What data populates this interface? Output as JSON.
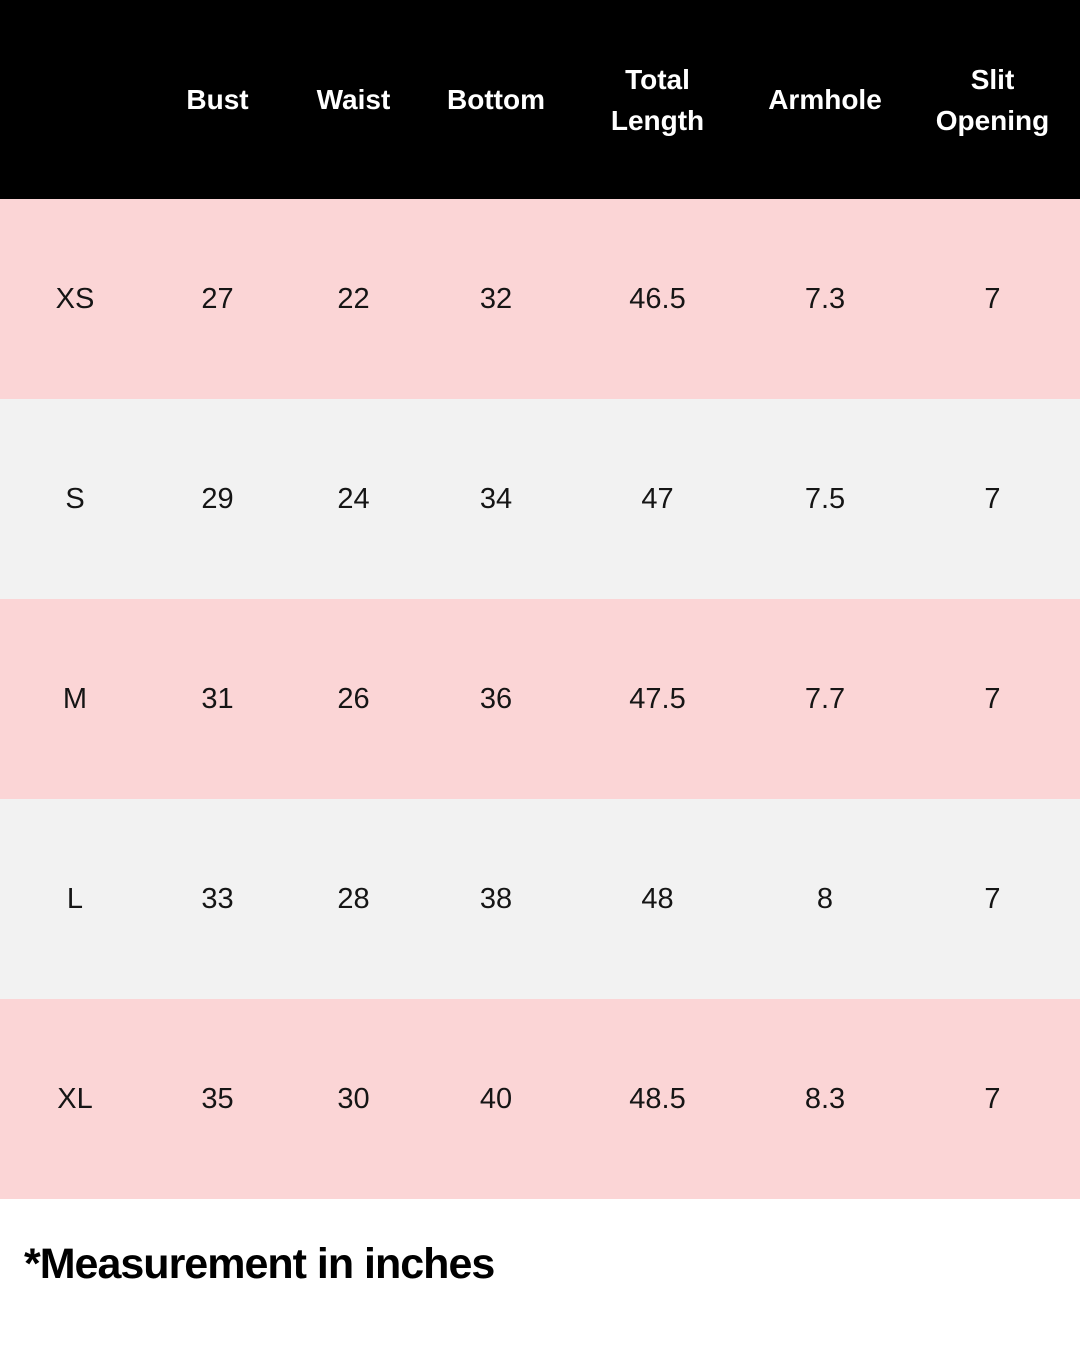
{
  "table": {
    "headers": [
      "",
      "Bust",
      "Waist",
      "Bottom",
      "Total\nLength",
      "Armhole",
      "Slit\nOpening"
    ],
    "rows": [
      [
        "XS",
        "27",
        "22",
        "32",
        "46.5",
        "7.3",
        "7"
      ],
      [
        "S",
        "29",
        "24",
        "34",
        "47",
        "7.5",
        "7"
      ],
      [
        "M",
        "31",
        "26",
        "36",
        "47.5",
        "7.7",
        "7"
      ],
      [
        "L",
        "33",
        "28",
        "38",
        "48",
        "8",
        "7"
      ],
      [
        "XL",
        "35",
        "30",
        "40",
        "48.5",
        "8.3",
        "7"
      ]
    ]
  },
  "colors": {
    "header_bg": "#000000",
    "row_pink": "#fbd5d6",
    "row_grey": "#f2f2f2"
  },
  "footnote": "*Measurement in inches"
}
